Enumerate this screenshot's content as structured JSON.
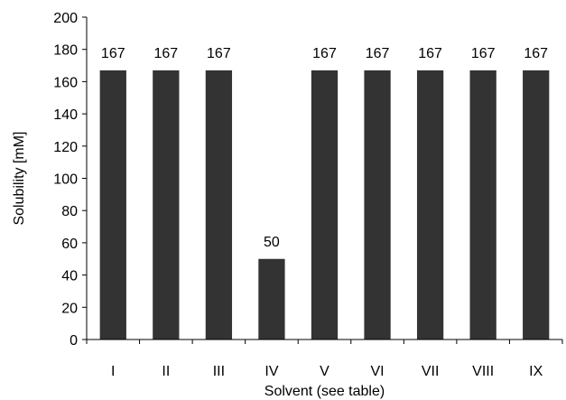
{
  "chart_data": {
    "type": "bar",
    "title": "",
    "xlabel": "Solvent (see table)",
    "ylabel": "Solubility [mM]",
    "categories": [
      "I",
      "II",
      "III",
      "IV",
      "V",
      "VI",
      "VII",
      "VIII",
      "IX"
    ],
    "values": [
      167,
      167,
      167,
      50,
      167,
      167,
      167,
      167,
      167
    ],
    "data_labels": [
      "167",
      "167",
      "167",
      "50",
      "167",
      "167",
      "167",
      "167",
      "167"
    ],
    "ylim": [
      0,
      200
    ],
    "yticks": [
      0,
      20,
      40,
      60,
      80,
      100,
      120,
      140,
      160,
      180,
      200
    ],
    "grid": false,
    "legend": "none",
    "bar_color": "#333333"
  }
}
